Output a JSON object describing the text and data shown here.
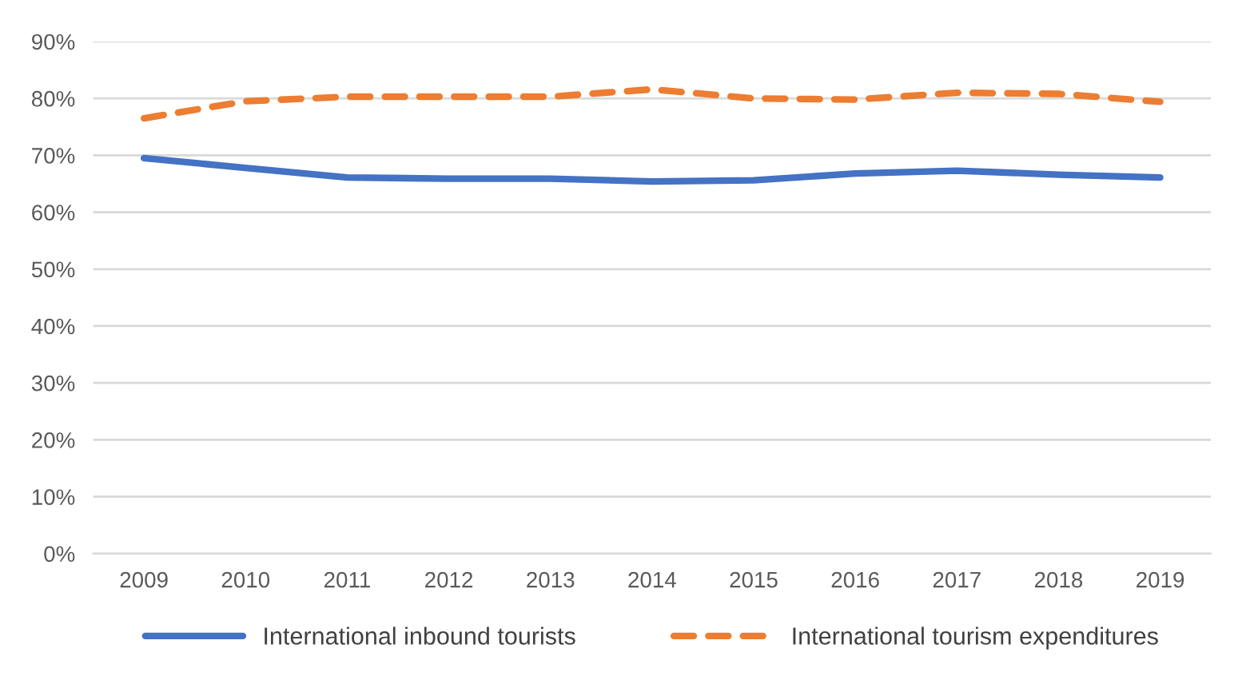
{
  "chart_data": {
    "type": "line",
    "categories": [
      "2009",
      "2010",
      "2011",
      "2012",
      "2013",
      "2014",
      "2015",
      "2016",
      "2017",
      "2018",
      "2019"
    ],
    "series": [
      {
        "name": "International inbound tourists",
        "color": "#4472c4",
        "line_style": "solid",
        "values": [
          69.5,
          67.8,
          66.1,
          65.9,
          65.9,
          65.4,
          65.6,
          66.8,
          67.3,
          66.6,
          66.1
        ]
      },
      {
        "name": "International tourism expenditures",
        "color": "#ed7d31",
        "line_style": "dashed",
        "values": [
          76.5,
          79.5,
          80.3,
          80.3,
          80.3,
          81.6,
          80.0,
          79.8,
          81.0,
          80.8,
          79.4
        ]
      }
    ],
    "ylim": [
      0,
      90
    ],
    "yticks": [
      {
        "value": 0,
        "label": "0%"
      },
      {
        "value": 10,
        "label": "10%"
      },
      {
        "value": 20,
        "label": "20%"
      },
      {
        "value": 30,
        "label": "30%"
      },
      {
        "value": 40,
        "label": "40%"
      },
      {
        "value": 50,
        "label": "50%"
      },
      {
        "value": 60,
        "label": "60%"
      },
      {
        "value": 70,
        "label": "70%"
      },
      {
        "value": 80,
        "label": "80%"
      },
      {
        "value": 90,
        "label": "90%"
      }
    ],
    "grid": "y",
    "legend": "bottom",
    "marker": "none"
  }
}
